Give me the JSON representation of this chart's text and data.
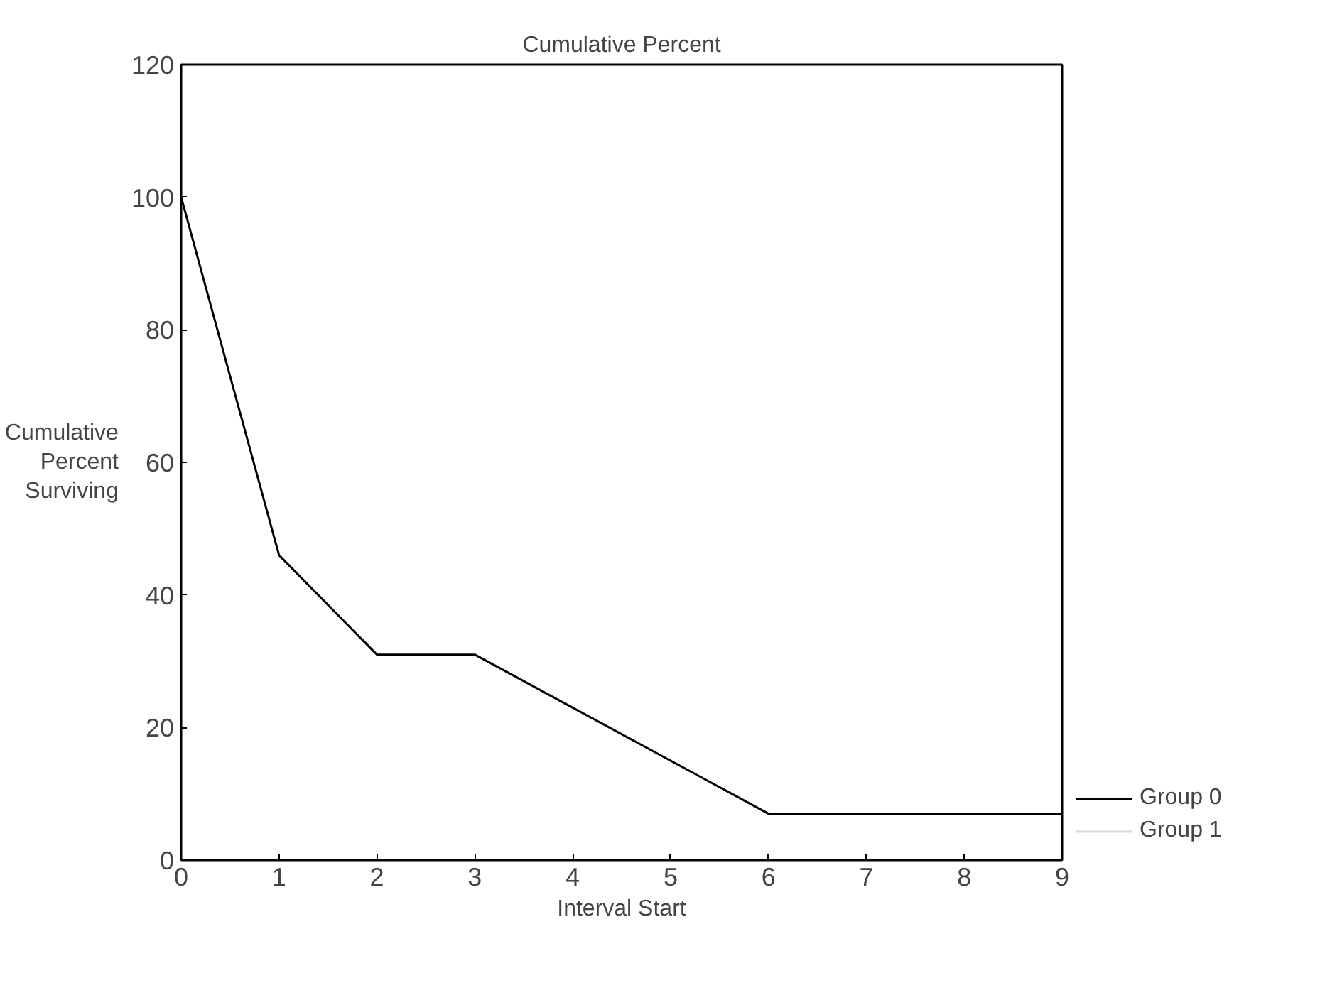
{
  "chart_data": {
    "type": "line",
    "title": "Cumulative Percent",
    "xlabel": "Interval Start",
    "ylabel": "Cumulative\nPercent\nSurviving",
    "x": [
      0,
      1,
      2,
      3,
      6,
      9
    ],
    "series": [
      {
        "name": "Group 0",
        "color": "#000000",
        "values": [
          100,
          46,
          31,
          31,
          7,
          7
        ]
      },
      {
        "name": "Group 1",
        "color": "#d9d9d9",
        "values": [
          null,
          null,
          null,
          null,
          null,
          null
        ]
      }
    ],
    "xlim": [
      0,
      9
    ],
    "xticks": [
      0,
      1,
      2,
      3,
      4,
      5,
      6,
      7,
      8,
      9
    ],
    "ylim": [
      0,
      120
    ],
    "yticks": [
      0,
      20,
      40,
      60,
      80,
      100,
      120
    ],
    "grid": false,
    "legend": "bottom right",
    "marker": "none",
    "line_style": "solid"
  }
}
